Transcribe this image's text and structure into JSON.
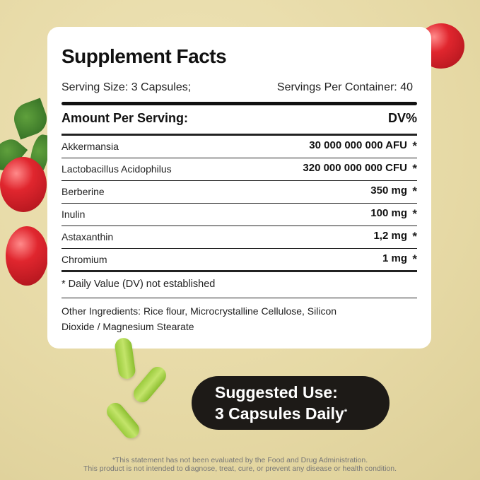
{
  "title": "Supplement Facts",
  "serving_size": "Serving Size: 3 Capsules;",
  "servings_per_container": "Servings Per Container: 40",
  "amount_header": "Amount Per Serving:",
  "dv_header": "DV%",
  "ingredients": [
    {
      "name": "Akkermansia",
      "amount": "30 000 000 000 AFU",
      "dv": "*"
    },
    {
      "name": "Lactobacillus Acidophilus",
      "amount": "320 000 000 000 CFU",
      "dv": "*"
    },
    {
      "name": "Berberine",
      "amount": "350 mg",
      "dv": "*"
    },
    {
      "name": "Inulin",
      "amount": "100 mg",
      "dv": "*"
    },
    {
      "name": "Astaxanthin",
      "amount": "1,2 mg",
      "dv": "*"
    },
    {
      "name": "Chromium",
      "amount": "1 mg",
      "dv": "*"
    }
  ],
  "dv_note": "* Daily Value (DV) not established",
  "other_ingredients": "Other Ingredients: Rice flour, Microcrystalline Cellulose, Silicon Dioxide / Magnesium Stearate",
  "suggested_use": {
    "line1": "Suggested Use:",
    "line2": "3 Capsules Daily",
    "mark": "*"
  },
  "disclaimer": {
    "line1": "*This statement has not been evaluated by the Food and Drug Administration.",
    "line2": "This product is not intended to diagnose, treat, cure, or prevent any disease or health condition."
  },
  "colors": {
    "background": "#e7dba9",
    "pill": "#1d1a17",
    "berry": "#e0262e",
    "capsule": "#a8d44a"
  }
}
